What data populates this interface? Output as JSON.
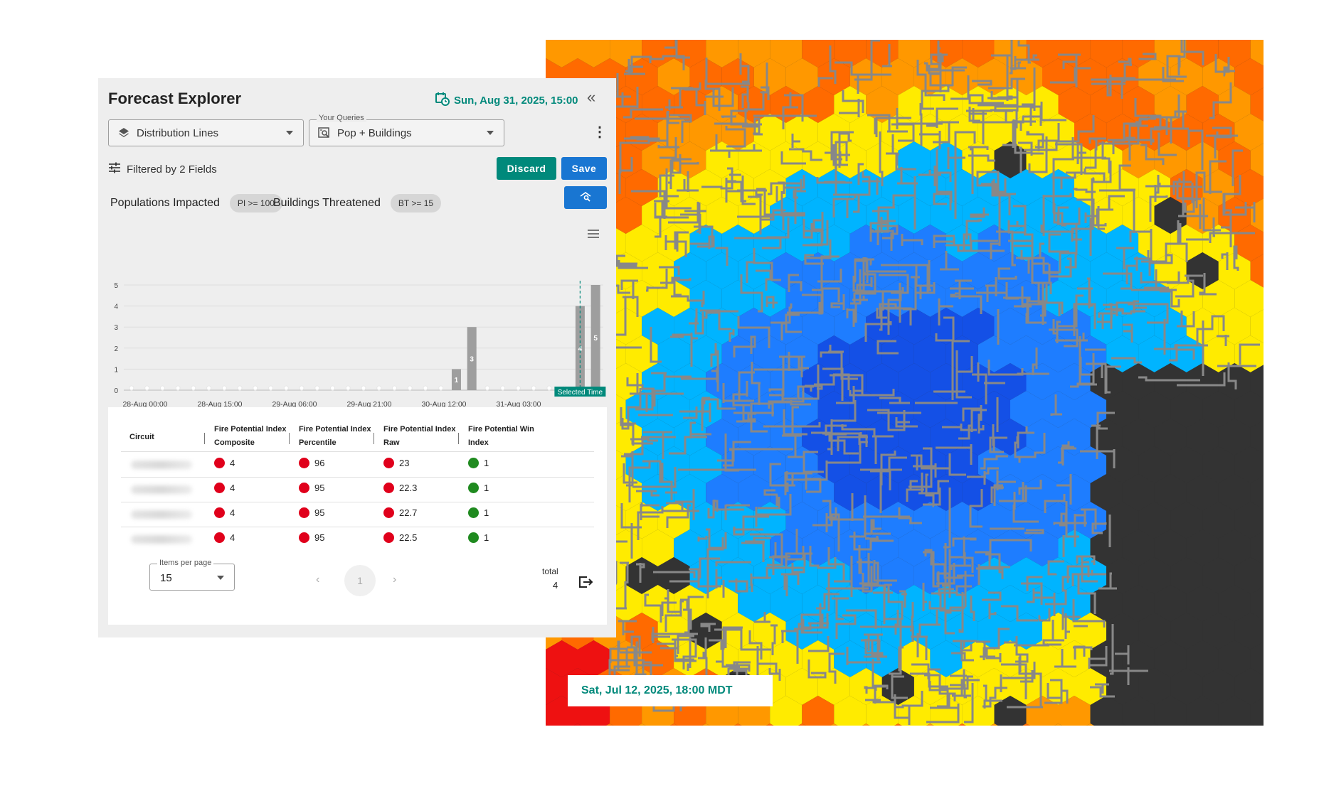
{
  "header": {
    "title": "Forecast Explorer",
    "datetime": "Sun, Aug 31, 2025, 15:00",
    "collapse_glyph": "«",
    "icons": [
      "calendar-clock-icon",
      "collapse-double-chevron-icon"
    ]
  },
  "layer_select": {
    "value": "Distribution Lines",
    "icon": "layers-icon"
  },
  "query_select": {
    "legend": "Your Queries",
    "value": "Pop + Buildings",
    "icon": "saved-search-icon"
  },
  "filter": {
    "label": "Filtered by 2 Fields",
    "icon": "tune-sliders-icon"
  },
  "buttons": {
    "discard": "Discard",
    "save": "Save",
    "query_icon": "search-map-icon"
  },
  "criteria": [
    {
      "label": "Populations Impacted",
      "chip": "PI >= 100"
    },
    {
      "label": "Buildings Threatened",
      "chip": "BT >= 15"
    }
  ],
  "chart_data": {
    "type": "bar",
    "x_tick_labels": [
      "28-Aug 00:00",
      "28-Aug 15:00",
      "29-Aug 06:00",
      "29-Aug 21:00",
      "30-Aug 12:00",
      "31-Aug 03:00"
    ],
    "y_ticks": [
      0,
      1,
      2,
      3,
      4,
      5
    ],
    "ylim": [
      0,
      5
    ],
    "slot_count": 31,
    "bars": [
      {
        "slot": 21,
        "value": 1
      },
      {
        "slot": 22,
        "value": 3
      },
      {
        "slot": 29,
        "value": 4
      },
      {
        "slot": 30,
        "value": 5
      }
    ],
    "zero_marker_slots": [
      0,
      1,
      2,
      3,
      4,
      5,
      6,
      7,
      8,
      9,
      10,
      11,
      12,
      13,
      14,
      15,
      16,
      17,
      18,
      19,
      20,
      23,
      24,
      25,
      26,
      27,
      28
    ],
    "selected_time_slot": 29,
    "selected_time_label": "Selected Time",
    "bar_color": "#9e9e9e",
    "selected_color": "#00897b",
    "grid": true
  },
  "table": {
    "columns": [
      [
        "Circuit"
      ],
      [
        "Fire Potential Index",
        "Composite"
      ],
      [
        "Fire Potential Index",
        "Percentile"
      ],
      [
        "Fire Potential Index",
        "Raw"
      ],
      [
        "Fire Potential Win",
        "Index"
      ]
    ],
    "rows": [
      {
        "composite": "4",
        "percentile": "96",
        "raw": "23",
        "wind": "1"
      },
      {
        "composite": "4",
        "percentile": "95",
        "raw": "22.3",
        "wind": "1"
      },
      {
        "composite": "4",
        "percentile": "95",
        "raw": "22.7",
        "wind": "1"
      },
      {
        "composite": "4",
        "percentile": "95",
        "raw": "22.5",
        "wind": "1"
      }
    ],
    "status_colors": {
      "high": "#e0001b",
      "low": "#1f8a1f"
    }
  },
  "pagination": {
    "items_per_page_label": "Items per page",
    "items_per_page": "15",
    "current_page": "1",
    "prev": "‹",
    "next": "›",
    "total_label": "total",
    "total": "4",
    "export_icon": "export-icon"
  },
  "map": {
    "timestamp": "Sat, Jul 12, 2025, 18:00 MDT",
    "palette": [
      "#ff6a00",
      "#ff9800",
      "#ffeb00",
      "#00b4ff",
      "#1e7dff",
      "#1450e6",
      "#ee1111",
      "#333333"
    ],
    "grid_color": "#888888"
  }
}
